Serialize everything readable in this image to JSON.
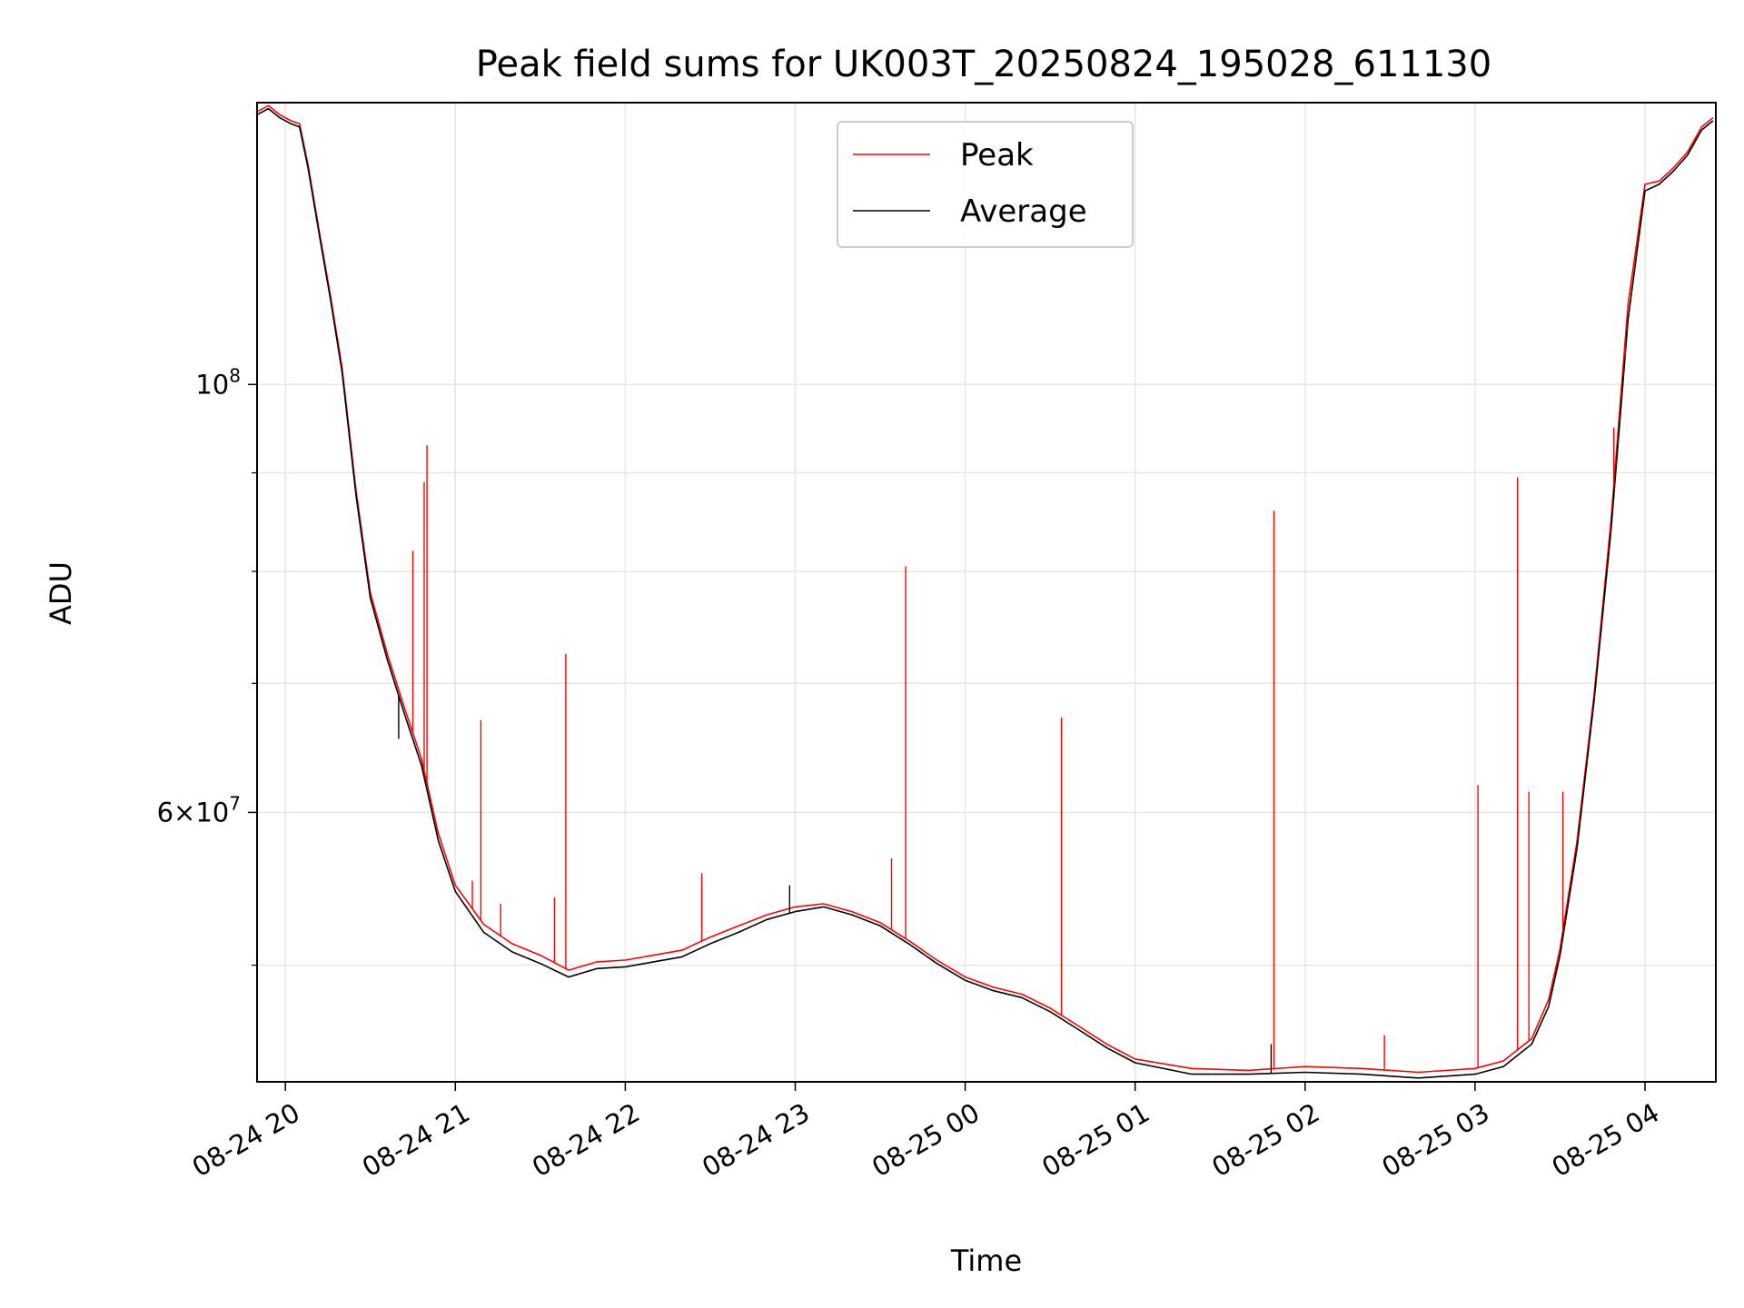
{
  "chart_data": {
    "type": "line",
    "title": "Peak field sums for UK003T_20250824_195028_611130",
    "xlabel": "Time",
    "ylabel": "ADU",
    "yscale": "log",
    "grid": true,
    "legend_position": "top-center",
    "xlim": [
      "08-24 19:50",
      "08-25 04:25"
    ],
    "ylim": [
      43500000,
      140000000
    ],
    "x_ticks": [
      "08-24 20",
      "08-24 21",
      "08-24 22",
      "08-24 23",
      "08-25 00",
      "08-25 01",
      "08-25 02",
      "08-25 03",
      "08-25 04"
    ],
    "y_major_tick_labels": [
      {
        "value": 100000000,
        "base": "10",
        "exp": "8"
      },
      {
        "value": 60000000,
        "mant": "6",
        "times": "×",
        "base": "10",
        "exp": "7"
      }
    ],
    "y_minor_ticks": [
      50000000,
      70000000,
      80000000,
      90000000
    ],
    "series": [
      {
        "name": "Peak",
        "color": "#ff0000",
        "points": [
          [
            "08-24 19:50",
            138500000
          ],
          [
            "08-24 19:54",
            139500000
          ],
          [
            "08-24 19:58",
            138000000
          ],
          [
            "08-24 20:02",
            137000000
          ],
          [
            "08-24 20:05",
            136500000
          ],
          [
            "08-24 20:08",
            130000000
          ],
          [
            "08-24 20:12",
            120000000
          ],
          [
            "08-24 20:16",
            111000000
          ],
          [
            "08-24 20:20",
            102000000
          ],
          [
            "08-24 20:25",
            88000000
          ],
          [
            "08-24 20:30",
            78000000
          ],
          [
            "08-24 20:36",
            72500000
          ],
          [
            "08-24 20:42",
            68000000
          ],
          [
            "08-24 20:48",
            64000000
          ],
          [
            "08-24 20:54",
            58500000
          ],
          [
            "08-24 21:00",
            55000000
          ],
          [
            "08-24 21:10",
            52500000
          ],
          [
            "08-24 21:20",
            51300000
          ],
          [
            "08-24 21:30",
            50600000
          ],
          [
            "08-24 21:40",
            49700000
          ],
          [
            "08-24 21:50",
            50200000
          ],
          [
            "08-24 22:00",
            50300000
          ],
          [
            "08-24 22:10",
            50600000
          ],
          [
            "08-24 22:20",
            50900000
          ],
          [
            "08-24 22:30",
            51700000
          ],
          [
            "08-24 22:40",
            52400000
          ],
          [
            "08-24 22:50",
            53100000
          ],
          [
            "08-24 23:00",
            53600000
          ],
          [
            "08-24 23:10",
            53800000
          ],
          [
            "08-24 23:20",
            53300000
          ],
          [
            "08-24 23:30",
            52600000
          ],
          [
            "08-24 23:40",
            51500000
          ],
          [
            "08-24 23:50",
            50300000
          ],
          [
            "08-25 00:00",
            49300000
          ],
          [
            "08-25 00:10",
            48700000
          ],
          [
            "08-25 00:20",
            48300000
          ],
          [
            "08-25 00:30",
            47500000
          ],
          [
            "08-25 00:40",
            46500000
          ],
          [
            "08-25 00:50",
            45500000
          ],
          [
            "08-25 01:00",
            44700000
          ],
          [
            "08-25 01:20",
            44200000
          ],
          [
            "08-25 01:40",
            44100000
          ],
          [
            "08-25 02:00",
            44300000
          ],
          [
            "08-25 02:20",
            44200000
          ],
          [
            "08-25 02:40",
            44000000
          ],
          [
            "08-25 03:00",
            44200000
          ],
          [
            "08-25 03:10",
            44600000
          ],
          [
            "08-25 03:20",
            45800000
          ],
          [
            "08-25 03:26",
            48000000
          ],
          [
            "08-25 03:30",
            51000000
          ],
          [
            "08-25 03:36",
            58000000
          ],
          [
            "08-25 03:42",
            69000000
          ],
          [
            "08-25 03:48",
            85000000
          ],
          [
            "08-25 03:54",
            110000000
          ],
          [
            "08-25 04:00",
            127000000
          ],
          [
            "08-25 04:05",
            127500000
          ],
          [
            "08-25 04:10",
            129500000
          ],
          [
            "08-25 04:15",
            132000000
          ],
          [
            "08-25 04:20",
            136000000
          ],
          [
            "08-25 04:24",
            137500000
          ]
        ]
      },
      {
        "name": "Average",
        "color": "#000000",
        "points": [
          [
            "08-24 19:50",
            138000000
          ],
          [
            "08-24 19:54",
            139000000
          ],
          [
            "08-24 19:58",
            137500000
          ],
          [
            "08-24 20:02",
            136500000
          ],
          [
            "08-24 20:05",
            136000000
          ],
          [
            "08-24 20:08",
            129500000
          ],
          [
            "08-24 20:12",
            119500000
          ],
          [
            "08-24 20:16",
            110500000
          ],
          [
            "08-24 20:20",
            101500000
          ],
          [
            "08-24 20:25",
            87500000
          ],
          [
            "08-24 20:30",
            77500000
          ],
          [
            "08-24 20:36",
            72000000
          ],
          [
            "08-24 20:42",
            67500000
          ],
          [
            "08-24 20:48",
            63500000
          ],
          [
            "08-24 20:54",
            58000000
          ],
          [
            "08-24 21:00",
            54600000
          ],
          [
            "08-24 21:10",
            52000000
          ],
          [
            "08-24 21:20",
            50800000
          ],
          [
            "08-24 21:30",
            50100000
          ],
          [
            "08-24 21:40",
            49300000
          ],
          [
            "08-24 21:50",
            49800000
          ],
          [
            "08-24 22:00",
            49900000
          ],
          [
            "08-24 22:10",
            50200000
          ],
          [
            "08-24 22:20",
            50500000
          ],
          [
            "08-24 22:30",
            51300000
          ],
          [
            "08-24 22:40",
            52000000
          ],
          [
            "08-24 22:50",
            52800000
          ],
          [
            "08-24 23:00",
            53300000
          ],
          [
            "08-24 23:10",
            53600000
          ],
          [
            "08-24 23:20",
            53100000
          ],
          [
            "08-24 23:30",
            52400000
          ],
          [
            "08-24 23:40",
            51300000
          ],
          [
            "08-24 23:50",
            50100000
          ],
          [
            "08-25 00:00",
            49100000
          ],
          [
            "08-25 00:10",
            48500000
          ],
          [
            "08-25 00:20",
            48100000
          ],
          [
            "08-25 00:30",
            47300000
          ],
          [
            "08-25 00:40",
            46300000
          ],
          [
            "08-25 00:50",
            45300000
          ],
          [
            "08-25 01:00",
            44500000
          ],
          [
            "08-25 01:20",
            43900000
          ],
          [
            "08-25 01:40",
            43900000
          ],
          [
            "08-25 02:00",
            44000000
          ],
          [
            "08-25 02:20",
            43900000
          ],
          [
            "08-25 02:40",
            43700000
          ],
          [
            "08-25 03:00",
            43900000
          ],
          [
            "08-25 03:10",
            44300000
          ],
          [
            "08-25 03:20",
            45500000
          ],
          [
            "08-25 03:26",
            47600000
          ],
          [
            "08-25 03:30",
            50600000
          ],
          [
            "08-25 03:36",
            57500000
          ],
          [
            "08-25 03:42",
            68500000
          ],
          [
            "08-25 03:48",
            84000000
          ],
          [
            "08-25 03:54",
            108000000
          ],
          [
            "08-25 04:00",
            126000000
          ],
          [
            "08-25 04:05",
            127000000
          ],
          [
            "08-25 04:10",
            129000000
          ],
          [
            "08-25 04:15",
            131500000
          ],
          [
            "08-25 04:20",
            135500000
          ],
          [
            "08-25 04:24",
            137000000
          ]
        ]
      }
    ],
    "peak_spikes": [
      [
        "08-24 20:45",
        82000000
      ],
      [
        "08-24 20:49",
        89000000
      ],
      [
        "08-24 20:50",
        93000000
      ],
      [
        "08-24 21:06",
        55300000
      ],
      [
        "08-24 21:09",
        67000000
      ],
      [
        "08-24 21:16",
        53800000
      ],
      [
        "08-24 21:35",
        54200000
      ],
      [
        "08-24 21:39",
        72500000
      ],
      [
        "08-24 22:27",
        55800000
      ],
      [
        "08-24 23:34",
        56800000
      ],
      [
        "08-24 23:39",
        80500000
      ],
      [
        "08-25 00:34",
        67200000
      ],
      [
        "08-25 01:49",
        86000000
      ],
      [
        "08-25 02:28",
        46000000
      ],
      [
        "08-25 03:01",
        62000000
      ],
      [
        "08-25 03:15",
        89500000
      ],
      [
        "08-25 03:19",
        61500000
      ],
      [
        "08-25 03:31",
        61500000
      ],
      [
        "08-25 03:39",
        63500000
      ],
      [
        "08-25 03:49",
        95000000
      ],
      [
        "08-25 03:53",
        103000000
      ]
    ],
    "average_spikes": [
      [
        "08-24 20:40",
        65500000
      ],
      [
        "08-24 22:58",
        55000000
      ],
      [
        "08-25 01:48",
        45500000
      ]
    ]
  }
}
